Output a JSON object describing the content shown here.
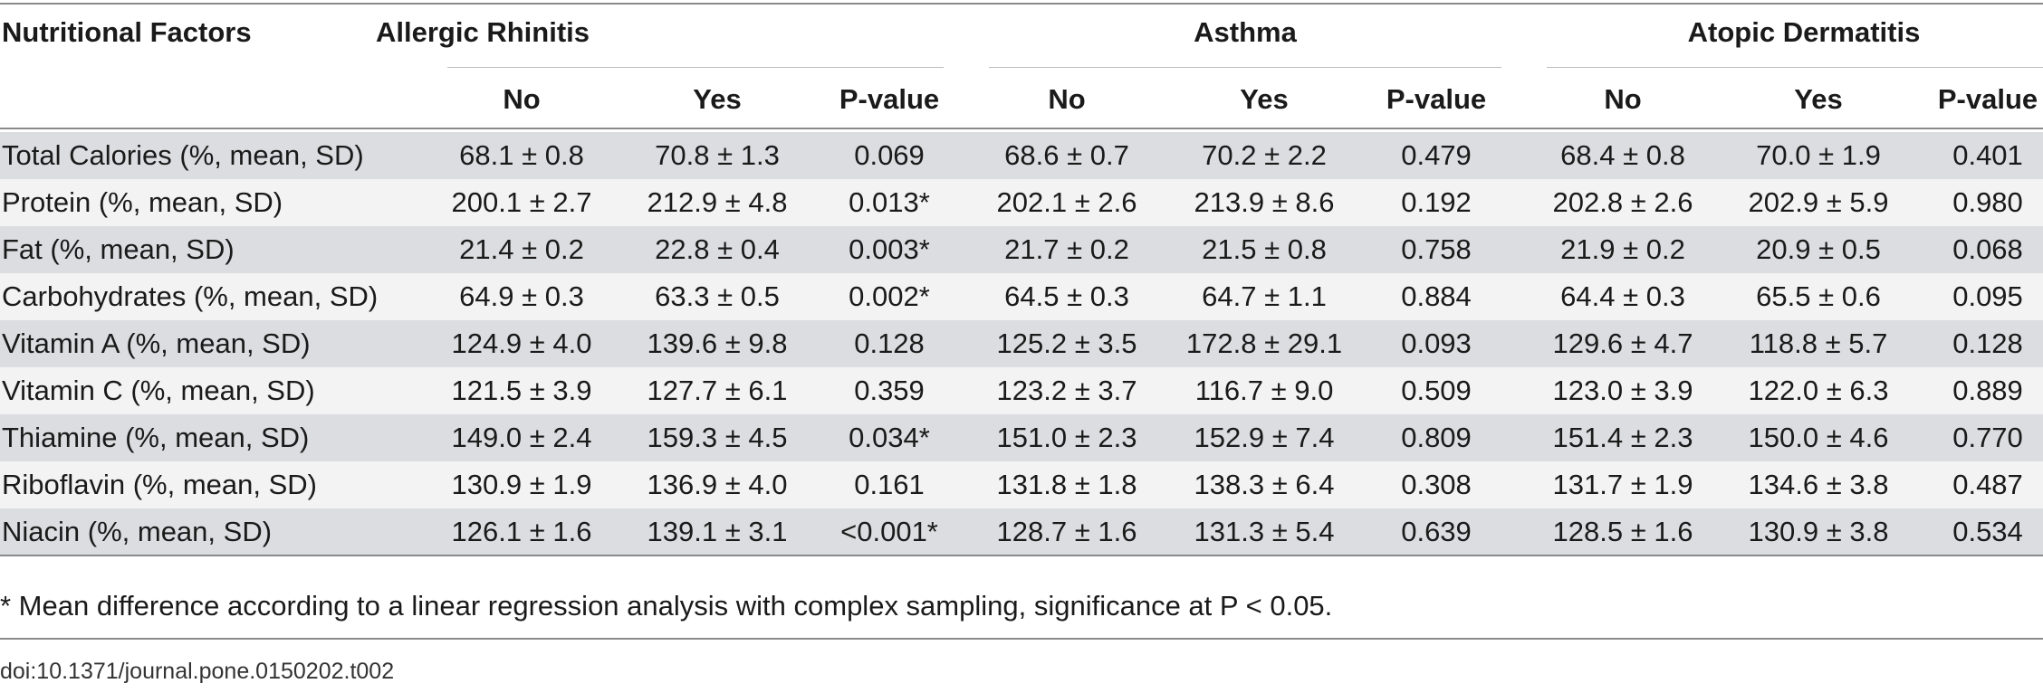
{
  "table": {
    "corner_header": "Nutritional Factors",
    "groups": [
      "Allergic Rhinitis",
      "Asthma",
      "Atopic Dermatitis"
    ],
    "subheaders": [
      "No",
      "Yes",
      "P-value",
      "No",
      "Yes",
      "P-value",
      "No",
      "Yes",
      "P-value"
    ],
    "rows": [
      {
        "label": "Total Calories (%, mean, SD)",
        "cells": [
          "68.1 ± 0.8",
          "70.8 ± 1.3",
          "0.069",
          "68.6 ± 0.7",
          "70.2 ± 2.2",
          "0.479",
          "68.4 ± 0.8",
          "70.0 ± 1.9",
          "0.401"
        ]
      },
      {
        "label": "Protein (%, mean, SD)",
        "cells": [
          "200.1 ± 2.7",
          "212.9 ± 4.8",
          "0.013*",
          "202.1 ± 2.6",
          "213.9 ± 8.6",
          "0.192",
          "202.8 ± 2.6",
          "202.9 ± 5.9",
          "0.980"
        ]
      },
      {
        "label": "Fat (%, mean, SD)",
        "cells": [
          "21.4 ± 0.2",
          "22.8 ± 0.4",
          "0.003*",
          "21.7 ± 0.2",
          "21.5 ± 0.8",
          "0.758",
          "21.9 ± 0.2",
          "20.9 ± 0.5",
          "0.068"
        ]
      },
      {
        "label": "Carbohydrates (%, mean, SD)",
        "cells": [
          "64.9 ± 0.3",
          "63.3 ± 0.5",
          "0.002*",
          "64.5 ± 0.3",
          "64.7 ± 1.1",
          "0.884",
          "64.4 ± 0.3",
          "65.5 ± 0.6",
          "0.095"
        ]
      },
      {
        "label": "Vitamin A (%, mean, SD)",
        "cells": [
          "124.9 ± 4.0",
          "139.6 ± 9.8",
          "0.128",
          "125.2 ± 3.5",
          "172.8 ± 29.1",
          "0.093",
          "129.6 ± 4.7",
          "118.8 ± 5.7",
          "0.128"
        ]
      },
      {
        "label": "Vitamin C (%, mean, SD)",
        "cells": [
          "121.5 ± 3.9",
          "127.7 ± 6.1",
          "0.359",
          "123.2 ± 3.7",
          "116.7 ± 9.0",
          "0.509",
          "123.0 ± 3.9",
          "122.0 ± 6.3",
          "0.889"
        ]
      },
      {
        "label": "Thiamine (%, mean, SD)",
        "cells": [
          "149.0 ± 2.4",
          "159.3 ± 4.5",
          "0.034*",
          "151.0 ± 2.3",
          "152.9 ± 7.4",
          "0.809",
          "151.4 ± 2.3",
          "150.0 ± 4.6",
          "0.770"
        ]
      },
      {
        "label": "Riboflavin (%, mean, SD)",
        "cells": [
          "130.9 ± 1.9",
          "136.9 ± 4.0",
          "0.161",
          "131.8 ± 1.8",
          "138.3 ± 6.4",
          "0.308",
          "131.7 ± 1.9",
          "134.6 ± 3.8",
          "0.487"
        ]
      },
      {
        "label": "Niacin (%, mean, SD)",
        "cells": [
          "126.1 ± 1.6",
          "139.1 ± 3.1",
          "<0.001*",
          "128.7 ± 1.6",
          "131.3 ± 5.4",
          "0.639",
          "128.5 ± 1.6",
          "130.9 ± 3.8",
          "0.534"
        ]
      }
    ]
  },
  "footnote": "* Mean difference according to a linear regression analysis with complex sampling, significance at P < 0.05.",
  "doi": "doi:10.1371/journal.pone.0150202.t002",
  "colors": {
    "row_shade": "#dcdde0",
    "row_light": "#f3f3f4",
    "rule": "#8a8a8a"
  }
}
